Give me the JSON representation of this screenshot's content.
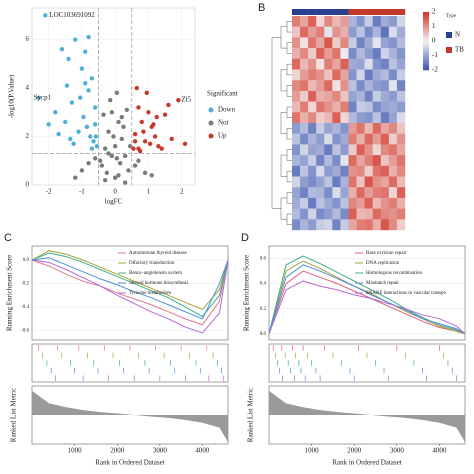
{
  "chart_data": [
    {
      "type": "scatter",
      "xlabel": "logFC",
      "ylabel": "-log10(P.Value)",
      "xlim": [
        -2.5,
        2.4
      ],
      "ylim": [
        0,
        7.3
      ],
      "xticks": [
        -2,
        -1,
        0,
        1,
        2
      ],
      "yticks": [
        0,
        2,
        4,
        6
      ],
      "vlines": [
        -0.5,
        0.5
      ],
      "hline": 1.3,
      "legend_title": "Significant",
      "grid": true,
      "series": [
        {
          "name": "Down",
          "color": "#4fb0d6",
          "x": [
            -2.1,
            -2.3,
            -1.6,
            -1.4,
            -1.2,
            -1.0,
            -0.9,
            -0.8,
            -0.7,
            -0.6,
            -1.8,
            -1.5,
            -1.3,
            -1.1,
            -0.95,
            -0.75,
            -0.65,
            -0.55,
            -1.7,
            -1.25,
            -0.85,
            -0.6,
            -1.05,
            -0.7,
            -1.45,
            -0.9,
            -2.0,
            -1.35,
            -0.58,
            -0.8
          ],
          "values": [
            7.0,
            3.6,
            5.6,
            5.2,
            6.0,
            4.8,
            5.5,
            3.9,
            4.4,
            3.2,
            3.0,
            2.6,
            3.4,
            2.2,
            2.8,
            2.0,
            1.8,
            1.6,
            2.1,
            1.7,
            2.4,
            2.5,
            3.6,
            1.5,
            4.1,
            4.2,
            2.5,
            1.9,
            2.0,
            6.1
          ]
        },
        {
          "name": "Not",
          "color": "#7a7a7a",
          "x": [
            -0.4,
            -0.3,
            -0.2,
            -0.1,
            0,
            0.1,
            0.2,
            0.3,
            0.4,
            -0.35,
            -0.15,
            0.05,
            0.25,
            0.45,
            -0.45,
            -0.25,
            0.15,
            0.35,
            -0.05,
            0.1,
            -0.8,
            -1.0,
            0.7,
            0.9,
            -0.6,
            0.6,
            -1.2,
            1.1,
            -0.3,
            0.3,
            0,
            -0.1,
            0.2,
            -0.2,
            0.05
          ],
          "values": [
            0.8,
            1.5,
            2.2,
            3.0,
            0.3,
            2.6,
            1.9,
            1.2,
            0.6,
            2.9,
            3.5,
            1.1,
            2.4,
            1.6,
            1.0,
            0.5,
            0.9,
            3.1,
            2.0,
            0.4,
            0.9,
            0.6,
            1.0,
            0.5,
            1.1,
            0.8,
            0.3,
            0.4,
            0.2,
            0.1,
            1.6,
            1.2,
            2.8,
            1.3,
            3.8
          ]
        },
        {
          "name": "Up",
          "color": "#c8382c",
          "x": [
            1.9,
            0.6,
            0.7,
            0.8,
            0.9,
            1.0,
            1.1,
            1.2,
            1.3,
            1.5,
            1.7,
            0.55,
            0.65,
            0.75,
            0.85,
            1.05,
            1.25,
            1.4,
            2.1,
            0.95,
            0.7,
            1.15,
            0.6,
            1.6
          ],
          "values": [
            3.5,
            2.1,
            3.2,
            2.6,
            1.8,
            3.0,
            2.4,
            2.0,
            1.6,
            2.9,
            1.9,
            1.5,
            4.0,
            1.4,
            2.2,
            1.7,
            2.8,
            1.5,
            1.7,
            3.8,
            1.5,
            2.5,
            1.8,
            3.3
          ]
        }
      ],
      "annotations": [
        {
          "text": "LOC103691092",
          "x": -2.1,
          "y": 7.0
        },
        {
          "text": "Sycp1",
          "x": -2.3,
          "y": 3.6
        },
        {
          "text": "Zl5",
          "x": 1.9,
          "y": 3.5
        }
      ]
    },
    {
      "type": "heatmap",
      "panel": "B",
      "legend_title": "Type",
      "column_types": [
        "N",
        "N",
        "N",
        "N",
        "N",
        "N",
        "N",
        "TB",
        "TB",
        "TB",
        "TB",
        "TB",
        "TB",
        "TB"
      ],
      "type_colors": {
        "N": "#2a3f8f",
        "TB": "#c0392b"
      },
      "clim": [
        -2,
        2
      ],
      "cticks": [
        2,
        1,
        0,
        -1,
        -2
      ],
      "colorscale": {
        "low": "#3a52b0",
        "mid": "#f4f4f4",
        "high": "#d22f22"
      },
      "values": [
        [
          1.2,
          0.8,
          1.5,
          0.3,
          1.1,
          0.6,
          0.9,
          -0.8,
          -1.2,
          -0.5,
          -1.5,
          -0.9,
          -1.1,
          -0.4
        ],
        [
          0.5,
          1.4,
          0.9,
          1.2,
          -0.2,
          1.0,
          0.7,
          -1.1,
          -0.6,
          -1.3,
          -0.8,
          -1.6,
          -0.3,
          -0.9
        ],
        [
          1.0,
          0.2,
          1.3,
          0.8,
          1.6,
          0.4,
          1.1,
          -0.5,
          -1.4,
          -0.9,
          -0.2,
          -1.0,
          -1.2,
          -0.7
        ],
        [
          0.7,
          1.1,
          0.4,
          1.5,
          0.9,
          1.3,
          -0.1,
          -1.3,
          -0.7,
          -1.1,
          -1.5,
          -0.4,
          -0.8,
          -1.2
        ],
        [
          1.4,
          0.6,
          1.0,
          0.2,
          1.2,
          0.8,
          1.5,
          -0.9,
          -1.0,
          -0.3,
          -1.2,
          -1.4,
          -0.6,
          -1.0
        ],
        [
          0.3,
          0.9,
          1.2,
          1.0,
          0.5,
          1.4,
          0.8,
          -1.2,
          -0.4,
          -1.5,
          -0.9,
          -0.7,
          -1.3,
          -0.5
        ],
        [
          1.1,
          1.3,
          0.6,
          0.9,
          1.4,
          0.2,
          1.0,
          -0.6,
          -1.3,
          -0.8,
          -1.1,
          -1.2,
          -0.2,
          -1.4
        ],
        [
          0.9,
          0.4,
          1.5,
          0.7,
          0.8,
          1.1,
          0.5,
          -1.0,
          -0.8,
          -1.4,
          -0.5,
          -0.9,
          -1.1,
          -0.6
        ],
        [
          0.6,
          1.2,
          0.3,
          1.3,
          1.0,
          0.7,
          1.2,
          -1.4,
          -0.5,
          -0.6,
          -1.3,
          -1.0,
          -0.9,
          -1.1
        ],
        [
          1.3,
          0.7,
          1.1,
          0.4,
          0.6,
          1.5,
          0.3,
          -0.7,
          -1.1,
          -1.2,
          -0.6,
          -1.5,
          -1.0,
          -0.3
        ],
        [
          -1.1,
          -0.7,
          -1.4,
          -0.5,
          -1.0,
          -0.8,
          -1.2,
          0.9,
          1.3,
          0.6,
          1.4,
          0.8,
          1.1,
          0.5
        ],
        [
          -0.6,
          -1.3,
          -0.8,
          -1.1,
          -0.3,
          -1.2,
          -0.9,
          1.2,
          0.7,
          1.4,
          0.9,
          1.5,
          0.4,
          1.0
        ],
        [
          -1.2,
          -0.4,
          -1.0,
          -0.9,
          -1.5,
          -0.6,
          -1.1,
          0.4,
          1.5,
          1.0,
          0.3,
          1.1,
          1.3,
          0.8
        ],
        [
          -0.8,
          -1.0,
          -0.5,
          -1.4,
          -0.7,
          -1.3,
          -0.2,
          1.4,
          0.8,
          1.2,
          1.6,
          0.5,
          0.9,
          1.3
        ],
        [
          -1.5,
          -0.6,
          -1.2,
          -0.3,
          -1.1,
          -0.9,
          -1.4,
          1.0,
          1.1,
          0.4,
          1.3,
          1.5,
          0.7,
          1.1
        ],
        [
          -0.4,
          -1.1,
          -1.3,
          -1.0,
          -0.6,
          -1.5,
          -0.8,
          1.3,
          0.5,
          1.6,
          1.0,
          0.8,
          1.4,
          0.6
        ],
        [
          -1.0,
          -1.4,
          -0.7,
          -0.8,
          -1.3,
          -0.3,
          -1.0,
          0.7,
          1.4,
          0.9,
          1.2,
          1.3,
          0.3,
          1.5
        ],
        [
          -0.9,
          -0.5,
          -1.5,
          -0.6,
          -0.9,
          -1.2,
          -0.6,
          1.1,
          0.9,
          1.5,
          0.6,
          1.0,
          1.2,
          0.7
        ],
        [
          -0.7,
          -1.2,
          -0.4,
          -1.3,
          -1.1,
          -0.7,
          -1.3,
          1.5,
          0.6,
          0.7,
          1.4,
          1.1,
          1.0,
          1.2
        ],
        [
          -1.3,
          -0.8,
          -1.1,
          -0.5,
          -0.4,
          -1.4,
          -0.5,
          0.8,
          1.2,
          1.3,
          0.7,
          1.6,
          1.1,
          0.4
        ]
      ]
    },
    {
      "type": "gsea",
      "panel": "C",
      "ylabel": "Running Enrichment Score",
      "xlabel": "Rank in Ordered Dataset",
      "xlim": [
        0,
        4600
      ],
      "xticks": [
        1000,
        2000,
        3000,
        4000
      ],
      "ylim": [
        -0.68,
        0.12
      ],
      "yticks": [
        -0.6,
        -0.4,
        -0.2,
        {
          "value": 0,
          "label": "0.0"
        }
      ],
      "x": [
        0,
        400,
        800,
        1200,
        1600,
        2000,
        2400,
        2800,
        3200,
        3600,
        4000,
        4400,
        4600
      ],
      "series": [
        {
          "name": "Autoimmune thyroid disease",
          "color": "#e07b91",
          "values": [
            0,
            -0.05,
            -0.12,
            -0.18,
            -0.22,
            -0.28,
            -0.33,
            -0.38,
            -0.44,
            -0.5,
            -0.55,
            -0.35,
            0
          ],
          "hits": [
            150,
            600,
            1100,
            1700,
            2300,
            2900,
            3500,
            4100
          ]
        },
        {
          "name": "Olfactory transduction",
          "color": "#a8a03a",
          "values": [
            0,
            0.08,
            0.05,
            0,
            -0.06,
            -0.12,
            -0.18,
            -0.24,
            -0.3,
            -0.36,
            -0.42,
            -0.25,
            0
          ],
          "hits": [
            250,
            700,
            1300,
            1900,
            2500,
            3100,
            3700,
            4250
          ]
        },
        {
          "name": "Renin−angiotensin system",
          "color": "#3fae8a",
          "values": [
            0,
            0.06,
            0.03,
            -0.02,
            -0.08,
            -0.14,
            -0.2,
            -0.26,
            -0.32,
            -0.4,
            -0.48,
            -0.3,
            0
          ],
          "hits": [
            350,
            900,
            1450,
            2050,
            2650,
            3250,
            3850,
            4350
          ]
        },
        {
          "name": "Steroid hormone biosynthesis",
          "color": "#4a90d9",
          "values": [
            0,
            0.02,
            -0.04,
            -0.1,
            -0.16,
            -0.21,
            -0.27,
            -0.32,
            -0.38,
            -0.44,
            -0.5,
            -0.2,
            0
          ],
          "hits": [
            450,
            1000,
            1550,
            2150,
            2750,
            3350,
            3950,
            4450
          ]
        },
        {
          "name": "Tyrosine metabolism",
          "color": "#b36ad6",
          "values": [
            0,
            -0.02,
            -0.08,
            -0.15,
            -0.22,
            -0.3,
            -0.37,
            -0.44,
            -0.5,
            -0.57,
            -0.62,
            -0.45,
            0
          ],
          "hits": [
            550,
            1200,
            1800,
            2400,
            3000,
            3600,
            4150,
            4500
          ]
        }
      ],
      "ranked_metric": {
        "label": "Ranked List Metric",
        "ylim": [
          -3,
          3
        ],
        "values": [
          2.5,
          1.2,
          0.8,
          0.5,
          0.3,
          0.15,
          0,
          -0.15,
          -0.3,
          -0.5,
          -0.8,
          -1.3,
          -2.8
        ]
      }
    },
    {
      "type": "gsea",
      "panel": "D",
      "ylabel": "Running Enrichment Score",
      "xlabel": "Rank in Ordered Dataset",
      "xlim": [
        0,
        4600
      ],
      "xticks": [
        1000,
        2000,
        3000,
        4000
      ],
      "ylim": [
        -0.05,
        0.7
      ],
      "yticks": [
        {
          "value": 0,
          "label": "0.0"
        },
        0.2,
        0.4,
        0.6
      ],
      "x": [
        0,
        400,
        800,
        1200,
        1600,
        2000,
        2400,
        2800,
        3200,
        3600,
        4000,
        4400,
        4600
      ],
      "series": [
        {
          "name": "Base excision repair",
          "color": "#e0607e",
          "values": [
            0,
            0.4,
            0.5,
            0.45,
            0.4,
            0.34,
            0.28,
            0.22,
            0.16,
            0.1,
            0.05,
            0.02,
            0
          ],
          "hits": [
            100,
            300,
            550,
            800,
            1300,
            2100,
            3000,
            4000
          ]
        },
        {
          "name": "DNA replication",
          "color": "#a8a03a",
          "values": [
            0,
            0.5,
            0.58,
            0.52,
            0.45,
            0.38,
            0.32,
            0.25,
            0.18,
            0.12,
            0.06,
            0.02,
            0
          ],
          "hits": [
            150,
            380,
            620,
            900,
            1500,
            2300,
            3200,
            4100
          ]
        },
        {
          "name": "Homologous recombination",
          "color": "#3fae8a",
          "values": [
            0,
            0.55,
            0.62,
            0.56,
            0.49,
            0.42,
            0.35,
            0.28,
            0.2,
            0.13,
            0.07,
            0.03,
            0
          ],
          "hits": [
            200,
            450,
            700,
            1000,
            1700,
            2500,
            3400,
            4200
          ]
        },
        {
          "name": "Mismatch repair",
          "color": "#4a90d9",
          "values": [
            0,
            0.45,
            0.55,
            0.5,
            0.44,
            0.38,
            0.31,
            0.25,
            0.19,
            0.12,
            0.08,
            0.04,
            0
          ],
          "hits": [
            250,
            500,
            750,
            1100,
            1900,
            2700,
            3600,
            4300
          ]
        },
        {
          "name": "SNARE interactions in vascular transpo",
          "color": "#b36ad6",
          "values": [
            0,
            0.35,
            0.42,
            0.38,
            0.35,
            0.31,
            0.28,
            0.24,
            0.2,
            0.15,
            0.12,
            0.06,
            0
          ],
          "hits": [
            320,
            600,
            850,
            1200,
            2000,
            2800,
            3700,
            4400
          ]
        }
      ],
      "ranked_metric": {
        "label": "Ranked List Metric",
        "ylim": [
          -3,
          3
        ],
        "values": [
          2.5,
          1.2,
          0.8,
          0.5,
          0.3,
          0.15,
          0,
          -0.15,
          -0.3,
          -0.5,
          -0.8,
          -1.3,
          -2.8
        ]
      }
    }
  ]
}
